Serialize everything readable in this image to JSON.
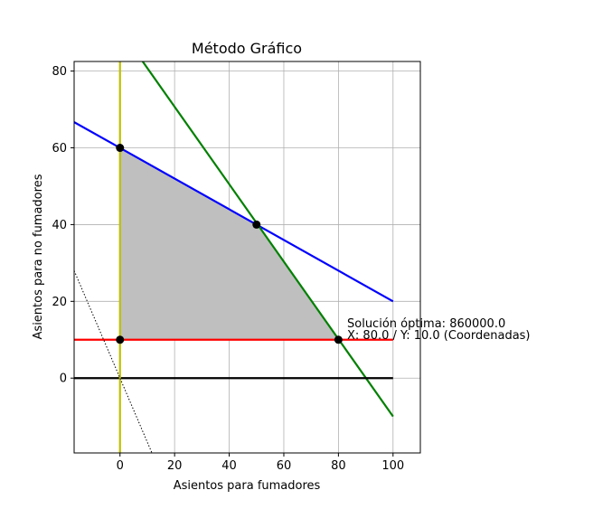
{
  "chart_data": {
    "type": "line",
    "title": "Método Gráfico",
    "xlabel": "Asientos para fumadores",
    "ylabel": "Asientos para no fumadores",
    "xlim": [
      -16.8,
      110
    ],
    "ylim": [
      -19.5,
      82.5
    ],
    "xticks": [
      0,
      20,
      40,
      60,
      80,
      100
    ],
    "yticks": [
      0,
      20,
      40,
      60,
      80
    ],
    "grid": true,
    "series": [
      {
        "color": "#0000ff",
        "style": "solid",
        "points": [
          [
            -16.8,
            66.7
          ],
          [
            100,
            20
          ]
        ]
      },
      {
        "color": "#008000",
        "style": "solid",
        "points": [
          [
            8.3,
            82.5
          ],
          [
            100,
            -10
          ]
        ]
      },
      {
        "color": "#ff0000",
        "style": "solid",
        "points": [
          [
            -16.8,
            10
          ],
          [
            100,
            10
          ]
        ]
      },
      {
        "color": "#000000",
        "style": "solid",
        "points": [
          [
            -16.8,
            0
          ],
          [
            100,
            0
          ]
        ]
      },
      {
        "color": "#bfbf00",
        "style": "solid",
        "points": [
          [
            0,
            -19.5
          ],
          [
            0,
            82.5
          ]
        ]
      },
      {
        "color": "#000000",
        "style": "dotted",
        "points": [
          [
            -16.8,
            28
          ],
          [
            11.7,
            -19.5
          ]
        ]
      }
    ],
    "feasible_region": {
      "color": "#bfbfbf",
      "points": [
        [
          0,
          60
        ],
        [
          50,
          40
        ],
        [
          80,
          10
        ],
        [
          0,
          10
        ]
      ]
    },
    "vertices": [
      [
        0,
        60
      ],
      [
        50,
        40
      ],
      [
        80,
        10
      ],
      [
        0,
        10
      ]
    ],
    "annotation": {
      "line1": "Solución óptima: 860000.0",
      "line2": "X: 80.0 / Y: 10.0 (Coordenadas)",
      "at": [
        80,
        10
      ]
    }
  }
}
